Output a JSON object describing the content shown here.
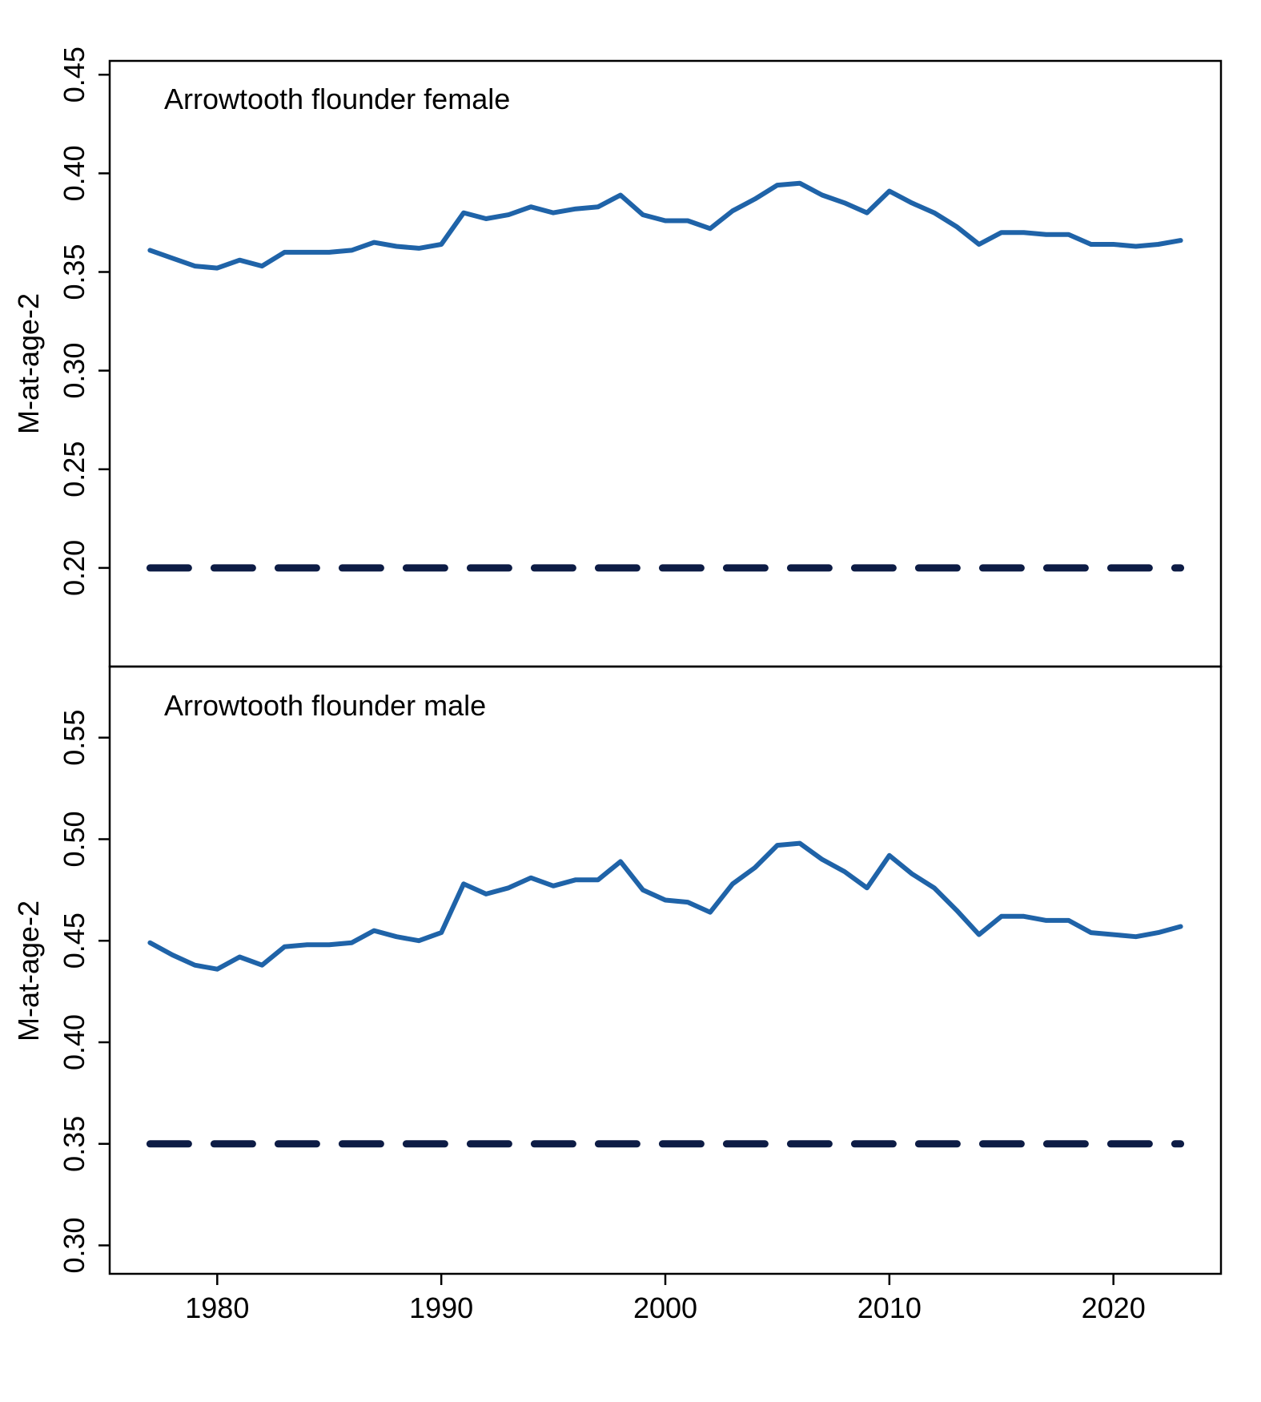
{
  "chart_data": [
    {
      "type": "line",
      "title": "Arrowtooth flounder female",
      "ylabel": "M-at-age-2",
      "xlabel": "",
      "xlim": [
        1975.2,
        2024.8
      ],
      "ylim": [
        0.15,
        0.457
      ],
      "yticks": [
        0.2,
        0.25,
        0.3,
        0.35,
        0.4,
        0.45
      ],
      "ytick_labels": [
        "0.20",
        "0.25",
        "0.30",
        "0.35",
        "0.40",
        "0.45"
      ],
      "xticks": [
        1980,
        1990,
        2000,
        2010,
        2020
      ],
      "xtick_labels": [],
      "grid": false,
      "x": [
        1977,
        1978,
        1979,
        1980,
        1981,
        1982,
        1983,
        1984,
        1985,
        1986,
        1987,
        1988,
        1989,
        1990,
        1991,
        1992,
        1993,
        1994,
        1995,
        1996,
        1997,
        1998,
        1999,
        2000,
        2001,
        2002,
        2003,
        2004,
        2005,
        2006,
        2007,
        2008,
        2009,
        2010,
        2011,
        2012,
        2013,
        2014,
        2015,
        2016,
        2017,
        2018,
        2019,
        2020,
        2021,
        2022,
        2023
      ],
      "series": [
        {
          "color": "#1f63a8",
          "style": "solid",
          "values": [
            0.361,
            0.357,
            0.353,
            0.352,
            0.356,
            0.353,
            0.36,
            0.36,
            0.36,
            0.361,
            0.365,
            0.363,
            0.362,
            0.364,
            0.38,
            0.377,
            0.379,
            0.383,
            0.38,
            0.382,
            0.383,
            0.389,
            0.379,
            0.376,
            0.376,
            0.372,
            0.381,
            0.387,
            0.394,
            0.395,
            0.389,
            0.385,
            0.38,
            0.391,
            0.385,
            0.38,
            0.373,
            0.364,
            0.37,
            0.37,
            0.369,
            0.369,
            0.364,
            0.364,
            0.363,
            0.364,
            0.366
          ]
        },
        {
          "color": "#0d1c45",
          "style": "dashed",
          "values": [
            0.2,
            0.2,
            0.2,
            0.2,
            0.2,
            0.2,
            0.2,
            0.2,
            0.2,
            0.2,
            0.2,
            0.2,
            0.2,
            0.2,
            0.2,
            0.2,
            0.2,
            0.2,
            0.2,
            0.2,
            0.2,
            0.2,
            0.2,
            0.2,
            0.2,
            0.2,
            0.2,
            0.2,
            0.2,
            0.2,
            0.2,
            0.2,
            0.2,
            0.2,
            0.2,
            0.2,
            0.2,
            0.2,
            0.2,
            0.2,
            0.2,
            0.2,
            0.2,
            0.2,
            0.2,
            0.2,
            0.2
          ]
        }
      ]
    },
    {
      "type": "line",
      "title": "Arrowtooth flounder male",
      "ylabel": "M-at-age-2",
      "xlabel": "",
      "xlim": [
        1975.2,
        2024.8
      ],
      "ylim": [
        0.286,
        0.585
      ],
      "yticks": [
        0.3,
        0.35,
        0.4,
        0.45,
        0.5,
        0.55
      ],
      "ytick_labels": [
        "0.30",
        "0.35",
        "0.40",
        "0.45",
        "0.50",
        "0.55"
      ],
      "xticks": [
        1980,
        1990,
        2000,
        2010,
        2020
      ],
      "xtick_labels": [
        "1980",
        "1990",
        "2000",
        "2010",
        "2020"
      ],
      "grid": false,
      "x": [
        1977,
        1978,
        1979,
        1980,
        1981,
        1982,
        1983,
        1984,
        1985,
        1986,
        1987,
        1988,
        1989,
        1990,
        1991,
        1992,
        1993,
        1994,
        1995,
        1996,
        1997,
        1998,
        1999,
        2000,
        2001,
        2002,
        2003,
        2004,
        2005,
        2006,
        2007,
        2008,
        2009,
        2010,
        2011,
        2012,
        2013,
        2014,
        2015,
        2016,
        2017,
        2018,
        2019,
        2020,
        2021,
        2022,
        2023
      ],
      "series": [
        {
          "color": "#1f63a8",
          "style": "solid",
          "values": [
            0.449,
            0.443,
            0.438,
            0.436,
            0.442,
            0.438,
            0.447,
            0.448,
            0.448,
            0.449,
            0.455,
            0.452,
            0.45,
            0.454,
            0.478,
            0.473,
            0.476,
            0.481,
            0.477,
            0.48,
            0.48,
            0.489,
            0.475,
            0.47,
            0.469,
            0.464,
            0.478,
            0.486,
            0.497,
            0.498,
            0.49,
            0.484,
            0.476,
            0.492,
            0.483,
            0.476,
            0.465,
            0.453,
            0.462,
            0.462,
            0.46,
            0.46,
            0.454,
            0.453,
            0.452,
            0.454,
            0.457
          ]
        },
        {
          "color": "#0d1c45",
          "style": "dashed",
          "values": [
            0.35,
            0.35,
            0.35,
            0.35,
            0.35,
            0.35,
            0.35,
            0.35,
            0.35,
            0.35,
            0.35,
            0.35,
            0.35,
            0.35,
            0.35,
            0.35,
            0.35,
            0.35,
            0.35,
            0.35,
            0.35,
            0.35,
            0.35,
            0.35,
            0.35,
            0.35,
            0.35,
            0.35,
            0.35,
            0.35,
            0.35,
            0.35,
            0.35,
            0.35,
            0.35,
            0.35,
            0.35,
            0.35,
            0.35,
            0.35,
            0.35,
            0.35,
            0.35,
            0.35,
            0.35,
            0.35,
            0.35
          ]
        }
      ]
    }
  ]
}
